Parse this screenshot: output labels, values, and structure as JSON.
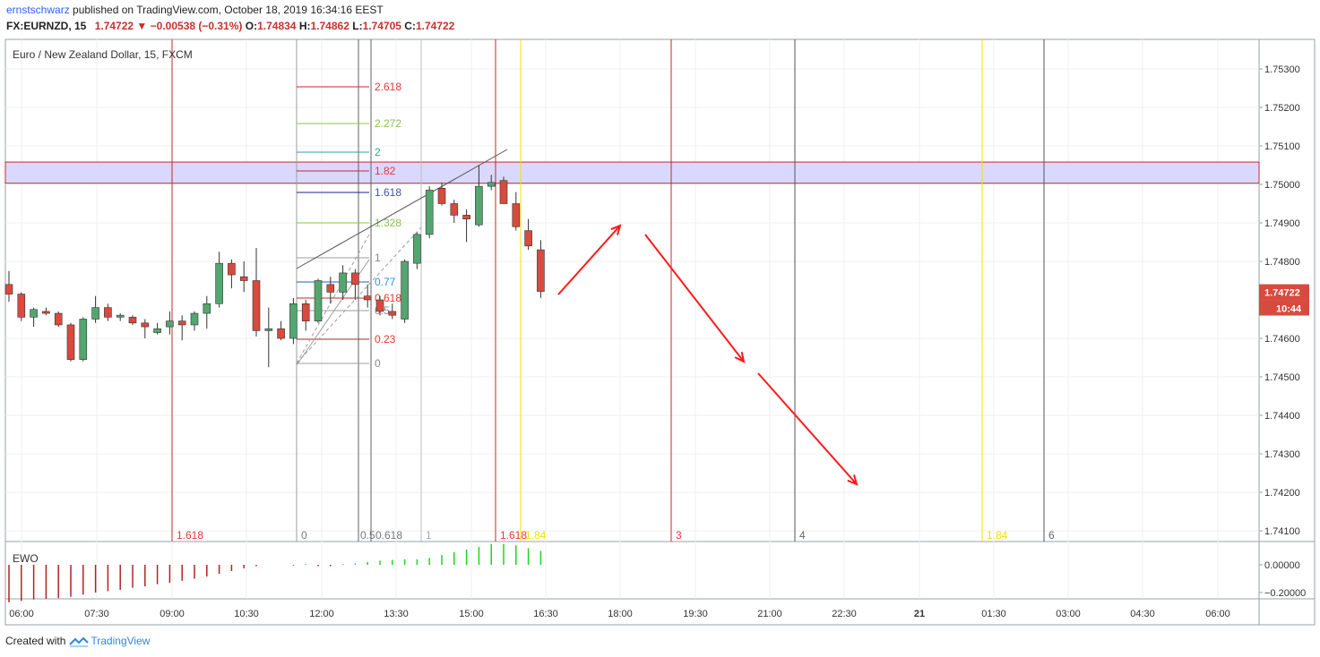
{
  "header": {
    "line1_user": "ernstschwarz",
    "line1_text": "published on TradingView.com, October 18, 2019 16:34:16 EEST",
    "symbol": "FX:EURNZD, 15",
    "last": "1.74722",
    "change": "−0.00538 (−0.31%)",
    "o_label": "O:",
    "o": "1.74834",
    "h_label": "H:",
    "h": "1.74862",
    "l_label": "L:",
    "l": "1.74705",
    "c_label": "C:",
    "c": "1.74722"
  },
  "footer": {
    "prefix": "Created with",
    "brand": "TradingView"
  },
  "chart_data": {
    "type": "candlestick",
    "title": "Euro / New Zealand Dollar, 15, FXCM",
    "y_axis": {
      "ticks": [
        "1.75300",
        "1.75200",
        "1.75100",
        "1.75000",
        "1.74900",
        "1.74800",
        "1.74600",
        "1.74500",
        "1.74400",
        "1.74300",
        "1.74200",
        "1.74100"
      ],
      "range": [
        1.7405,
        1.7538
      ]
    },
    "x_axis_labels": [
      "06:00",
      "07:30",
      "09:00",
      "10:30",
      "12:00",
      "13:30",
      "15:00",
      "16:30",
      "18:00",
      "19:30",
      "21:00",
      "22:30",
      "21",
      "01:30",
      "03:00",
      "04:30",
      "06:00"
    ],
    "price_label": {
      "value": "1.74722",
      "countdown": "10:44"
    },
    "candles": [
      {
        "o": 1.7474,
        "h": 1.74775,
        "l": 1.74695,
        "c": 1.74715
      },
      {
        "o": 1.74715,
        "h": 1.7472,
        "l": 1.74645,
        "c": 1.74655
      },
      {
        "o": 1.74655,
        "h": 1.7468,
        "l": 1.7463,
        "c": 1.74675
      },
      {
        "o": 1.7467,
        "h": 1.7468,
        "l": 1.7466,
        "c": 1.74665
      },
      {
        "o": 1.74665,
        "h": 1.7467,
        "l": 1.7463,
        "c": 1.74635
      },
      {
        "o": 1.74635,
        "h": 1.7464,
        "l": 1.7454,
        "c": 1.74545
      },
      {
        "o": 1.74545,
        "h": 1.74655,
        "l": 1.7454,
        "c": 1.7465
      },
      {
        "o": 1.7465,
        "h": 1.7471,
        "l": 1.7464,
        "c": 1.7468
      },
      {
        "o": 1.7468,
        "h": 1.7469,
        "l": 1.74645,
        "c": 1.74655
      },
      {
        "o": 1.74655,
        "h": 1.74665,
        "l": 1.74645,
        "c": 1.7466
      },
      {
        "o": 1.74655,
        "h": 1.7466,
        "l": 1.74635,
        "c": 1.7464
      },
      {
        "o": 1.7464,
        "h": 1.7465,
        "l": 1.746,
        "c": 1.7463
      },
      {
        "o": 1.74615,
        "h": 1.7464,
        "l": 1.7461,
        "c": 1.74625
      },
      {
        "o": 1.7463,
        "h": 1.7467,
        "l": 1.7461,
        "c": 1.74645
      },
      {
        "o": 1.74645,
        "h": 1.7466,
        "l": 1.74595,
        "c": 1.74635
      },
      {
        "o": 1.74635,
        "h": 1.7467,
        "l": 1.7462,
        "c": 1.74665
      },
      {
        "o": 1.74665,
        "h": 1.7471,
        "l": 1.74625,
        "c": 1.7469
      },
      {
        "o": 1.7469,
        "h": 1.74825,
        "l": 1.7468,
        "c": 1.74795
      },
      {
        "o": 1.74795,
        "h": 1.74805,
        "l": 1.7473,
        "c": 1.74765
      },
      {
        "o": 1.7476,
        "h": 1.748,
        "l": 1.7472,
        "c": 1.7475
      },
      {
        "o": 1.7475,
        "h": 1.74835,
        "l": 1.74605,
        "c": 1.7462
      },
      {
        "o": 1.7462,
        "h": 1.7468,
        "l": 1.74525,
        "c": 1.74625
      },
      {
        "o": 1.74625,
        "h": 1.74645,
        "l": 1.74595,
        "c": 1.746
      },
      {
        "o": 1.746,
        "h": 1.74705,
        "l": 1.74585,
        "c": 1.7469
      },
      {
        "o": 1.7469,
        "h": 1.747,
        "l": 1.7462,
        "c": 1.74645
      },
      {
        "o": 1.74645,
        "h": 1.74755,
        "l": 1.7464,
        "c": 1.7475
      },
      {
        "o": 1.7474,
        "h": 1.7476,
        "l": 1.7469,
        "c": 1.7472
      },
      {
        "o": 1.7472,
        "h": 1.7479,
        "l": 1.747,
        "c": 1.7477
      },
      {
        "o": 1.7477,
        "h": 1.7478,
        "l": 1.747,
        "c": 1.7474
      },
      {
        "o": 1.7471,
        "h": 1.7474,
        "l": 1.7468,
        "c": 1.747
      },
      {
        "o": 1.747,
        "h": 1.7471,
        "l": 1.7466,
        "c": 1.7467
      },
      {
        "o": 1.7467,
        "h": 1.7469,
        "l": 1.7465,
        "c": 1.7466
      },
      {
        "o": 1.7465,
        "h": 1.74805,
        "l": 1.7464,
        "c": 1.748
      },
      {
        "o": 1.74795,
        "h": 1.74875,
        "l": 1.7478,
        "c": 1.7487
      },
      {
        "o": 1.7487,
        "h": 1.74995,
        "l": 1.7486,
        "c": 1.74985
      },
      {
        "o": 1.7499,
        "h": 1.75005,
        "l": 1.74945,
        "c": 1.7495
      },
      {
        "o": 1.7495,
        "h": 1.7496,
        "l": 1.749,
        "c": 1.7492
      },
      {
        "o": 1.7492,
        "h": 1.74935,
        "l": 1.7485,
        "c": 1.7491
      },
      {
        "o": 1.74895,
        "h": 1.7505,
        "l": 1.7489,
        "c": 1.74995
      },
      {
        "o": 1.74995,
        "h": 1.75025,
        "l": 1.74985,
        "c": 1.75005
      },
      {
        "o": 1.7501,
        "h": 1.7502,
        "l": 1.7495,
        "c": 1.7495
      },
      {
        "o": 1.7495,
        "h": 1.7498,
        "l": 1.7488,
        "c": 1.7489
      },
      {
        "o": 1.7488,
        "h": 1.7491,
        "l": 1.7483,
        "c": 1.7484
      },
      {
        "o": 1.7483,
        "h": 1.74855,
        "l": 1.74705,
        "c": 1.74722
      }
    ],
    "resistance_zone": [
      1.75003,
      1.75058
    ],
    "fibonacci": {
      "labels": [
        "2.618",
        "2.272",
        "2",
        "1.82",
        "1.618",
        "1.328",
        "1",
        "0.77",
        "0.618",
        "0.5",
        "0.23",
        "0"
      ],
      "label_colors": [
        "#e53935",
        "#8bc34a",
        "#26a69a",
        "#e53935",
        "#3f51b5",
        "#8bc34a",
        "#888888",
        "#2196f3",
        "#e53935",
        "#888888",
        "#e53935",
        "#888888"
      ]
    },
    "time_cycle_labels": [
      {
        "text": "1.618",
        "color": "#e53935"
      },
      {
        "text": "0",
        "color": "#777777"
      },
      {
        "text": "0.5",
        "color": "#777777"
      },
      {
        "text": "0.618",
        "color": "#777777"
      },
      {
        "text": "1",
        "color": "#aaaaaa"
      },
      {
        "text": "1.618",
        "color": "#e53935"
      },
      {
        "text": "1.84",
        "color": "#f4e100"
      },
      {
        "text": "3",
        "color": "#e53935"
      },
      {
        "text": "4",
        "color": "#666666"
      },
      {
        "text": "1.84",
        "color": "#f4e100"
      },
      {
        "text": "6",
        "color": "#666666"
      }
    ],
    "indicator": {
      "name": "EWO",
      "ticks": [
        "0.00000",
        "−0.20000"
      ],
      "values": [
        -0.27,
        -0.26,
        -0.25,
        -0.245,
        -0.24,
        -0.23,
        -0.215,
        -0.2,
        -0.19,
        -0.18,
        -0.165,
        -0.155,
        -0.14,
        -0.13,
        -0.115,
        -0.1,
        -0.085,
        -0.065,
        -0.045,
        -0.025,
        -0.01,
        0,
        0,
        -0.005,
        0.005,
        -0.01,
        -0.01,
        0.005,
        0.01,
        0.02,
        0.03,
        0.035,
        0.04,
        0.04,
        0.05,
        0.07,
        0.09,
        0.11,
        0.13,
        0.15,
        0.15,
        0.14,
        0.12,
        0.1
      ]
    },
    "colors": {
      "up": "#53a66f",
      "down": "#d84a3e",
      "zone": "#d9d9ff",
      "arrows": "#ff1a1a"
    }
  }
}
